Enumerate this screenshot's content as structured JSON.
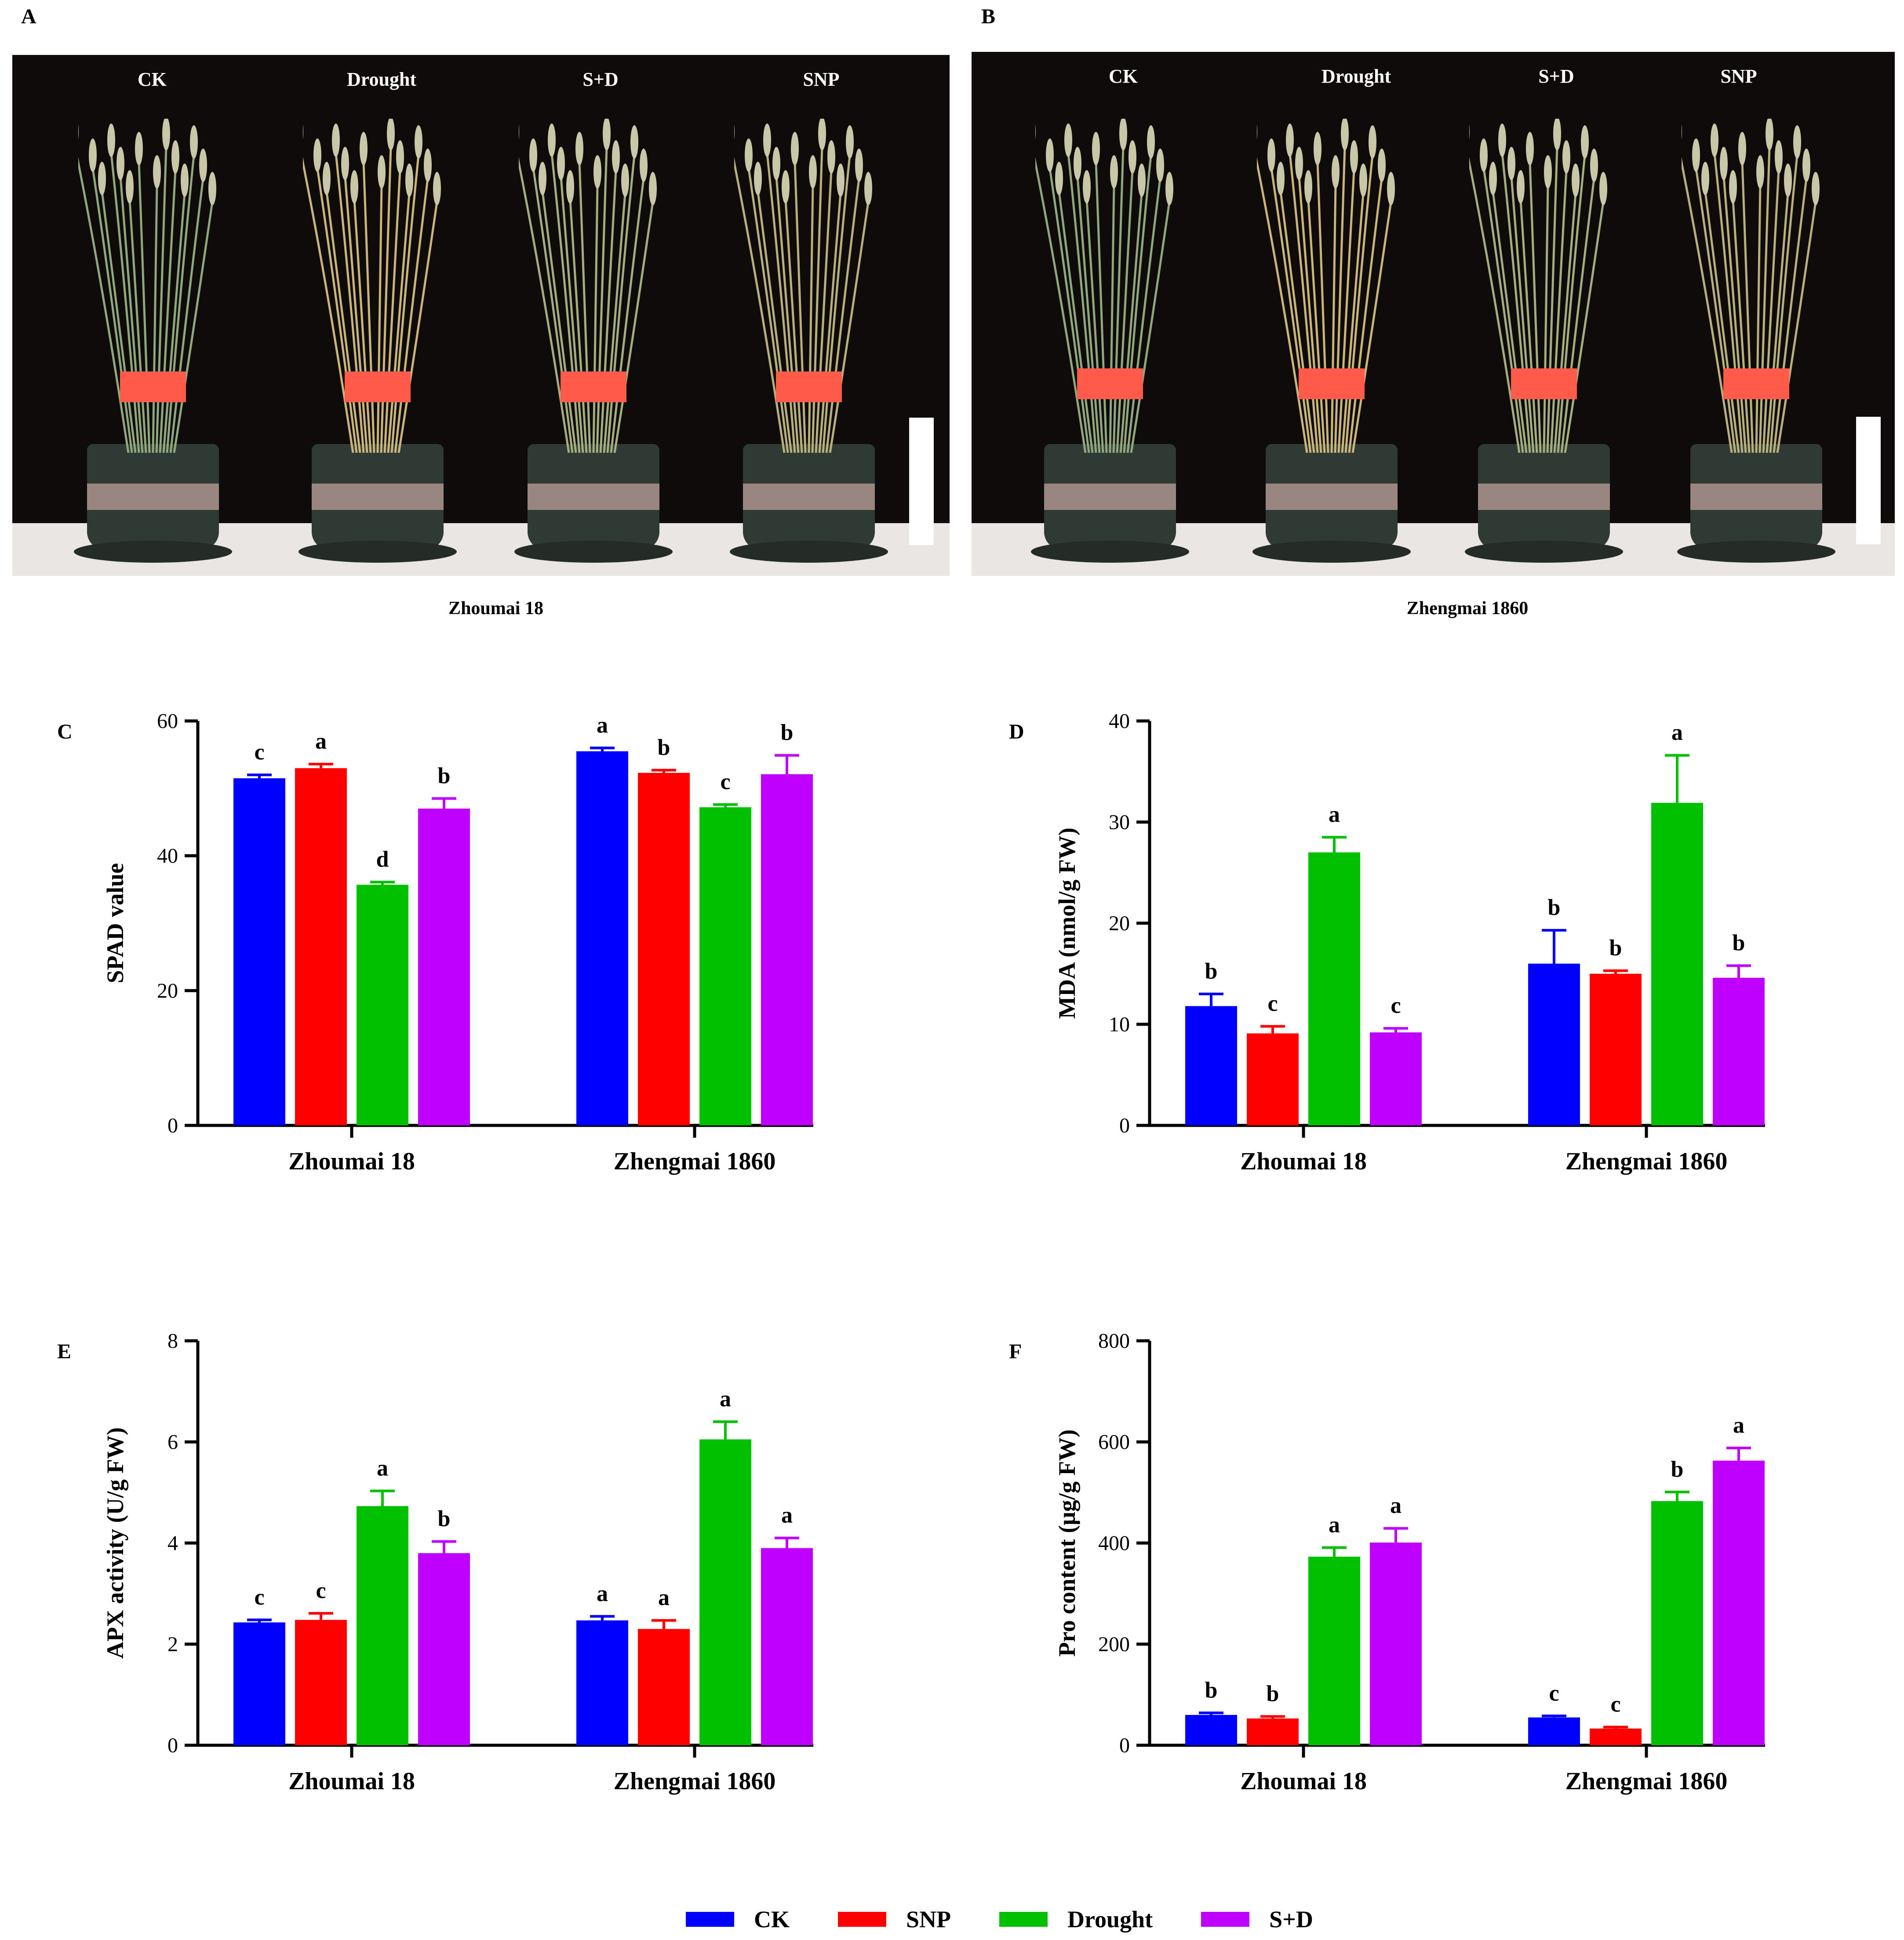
{
  "panels": {
    "A": {
      "letter": "A",
      "labels": [
        "CK",
        "Drought",
        "S+D",
        "SNP"
      ],
      "variety": "Zhoumai 18"
    },
    "B": {
      "letter": "B",
      "labels": [
        "CK",
        "Drought",
        "S+D",
        "SNP"
      ],
      "variety": "Zhengmai 1860"
    }
  },
  "legend": [
    {
      "label": "CK",
      "color": "#0000ff"
    },
    {
      "label": "SNP",
      "color": "#ff0000"
    },
    {
      "label": "Drought",
      "color": "#00c000"
    },
    {
      "label": "S+D",
      "color": "#c000ff"
    }
  ],
  "chart_data": [
    {
      "panel": "C",
      "type": "bar",
      "ylabel": "SPAD value",
      "ylim": [
        0,
        60
      ],
      "ticks": [
        0,
        20,
        40,
        60
      ],
      "categories": [
        "Zhoumai 18",
        "Zhengmai 1860"
      ],
      "series": [
        {
          "name": "CK",
          "values": [
            51.5,
            55.5
          ],
          "errors": [
            0.5,
            0.5
          ],
          "letters": [
            "c",
            "a"
          ]
        },
        {
          "name": "SNP",
          "values": [
            53,
            52.3
          ],
          "errors": [
            0.6,
            0.4
          ],
          "letters": [
            "a",
            "b"
          ]
        },
        {
          "name": "Drought",
          "values": [
            35.7,
            47.2
          ],
          "errors": [
            0.4,
            0.4
          ],
          "letters": [
            "d",
            "c"
          ]
        },
        {
          "name": "S+D",
          "values": [
            47,
            52.1
          ],
          "errors": [
            1.5,
            2.8
          ],
          "letters": [
            "b",
            "b"
          ]
        }
      ]
    },
    {
      "panel": "D",
      "type": "bar",
      "ylabel": "MDA (nmol/g FW)",
      "ylim": [
        0,
        40
      ],
      "ticks": [
        0,
        10,
        20,
        30,
        40
      ],
      "categories": [
        "Zhoumai 18",
        "Zhengmai 1860"
      ],
      "series": [
        {
          "name": "CK",
          "values": [
            11.8,
            16
          ],
          "errors": [
            1.2,
            3.3
          ],
          "letters": [
            "b",
            "b"
          ]
        },
        {
          "name": "SNP",
          "values": [
            9.1,
            15
          ],
          "errors": [
            0.7,
            0.3
          ],
          "letters": [
            "c",
            "b"
          ]
        },
        {
          "name": "Drought",
          "values": [
            27,
            31.9
          ],
          "errors": [
            1.5,
            4.7
          ],
          "letters": [
            "a",
            "a"
          ]
        },
        {
          "name": "S+D",
          "values": [
            9.2,
            14.6
          ],
          "errors": [
            0.4,
            1.2
          ],
          "letters": [
            "c",
            "b"
          ]
        }
      ]
    },
    {
      "panel": "E",
      "type": "bar",
      "ylabel": "APX activity (U/g FW)",
      "ylim": [
        0,
        8
      ],
      "ticks": [
        0,
        2,
        4,
        6,
        8
      ],
      "categories": [
        "Zhoumai 18",
        "Zhengmai 1860"
      ],
      "series": [
        {
          "name": "CK",
          "values": [
            2.43,
            2.47
          ],
          "errors": [
            0.05,
            0.08
          ],
          "letters": [
            "c",
            "a"
          ]
        },
        {
          "name": "SNP",
          "values": [
            2.48,
            2.3
          ],
          "errors": [
            0.13,
            0.17
          ],
          "letters": [
            "c",
            "a"
          ]
        },
        {
          "name": "Drought",
          "values": [
            4.73,
            6.05
          ],
          "errors": [
            0.3,
            0.35
          ],
          "letters": [
            "a",
            "a"
          ]
        },
        {
          "name": "S+D",
          "values": [
            3.8,
            3.9
          ],
          "errors": [
            0.23,
            0.2
          ],
          "letters": [
            "b",
            "a"
          ]
        }
      ]
    },
    {
      "panel": "F",
      "type": "bar",
      "ylabel": "Pro content (μg/g FW)",
      "ylim": [
        0,
        800
      ],
      "ticks": [
        0,
        200,
        400,
        600,
        800
      ],
      "categories": [
        "Zhoumai 18",
        "Zhengmai 1860"
      ],
      "series": [
        {
          "name": "CK",
          "values": [
            60,
            55
          ],
          "errors": [
            4,
            3
          ],
          "letters": [
            "b",
            "c"
          ]
        },
        {
          "name": "SNP",
          "values": [
            53,
            33
          ],
          "errors": [
            4,
            3
          ],
          "letters": [
            "b",
            "c"
          ]
        },
        {
          "name": "Drought",
          "values": [
            373,
            483
          ],
          "errors": [
            18,
            18
          ],
          "letters": [
            "a",
            "b"
          ]
        },
        {
          "name": "S+D",
          "values": [
            401,
            563
          ],
          "errors": [
            28,
            25
          ],
          "letters": [
            "a",
            "a"
          ]
        }
      ]
    }
  ]
}
